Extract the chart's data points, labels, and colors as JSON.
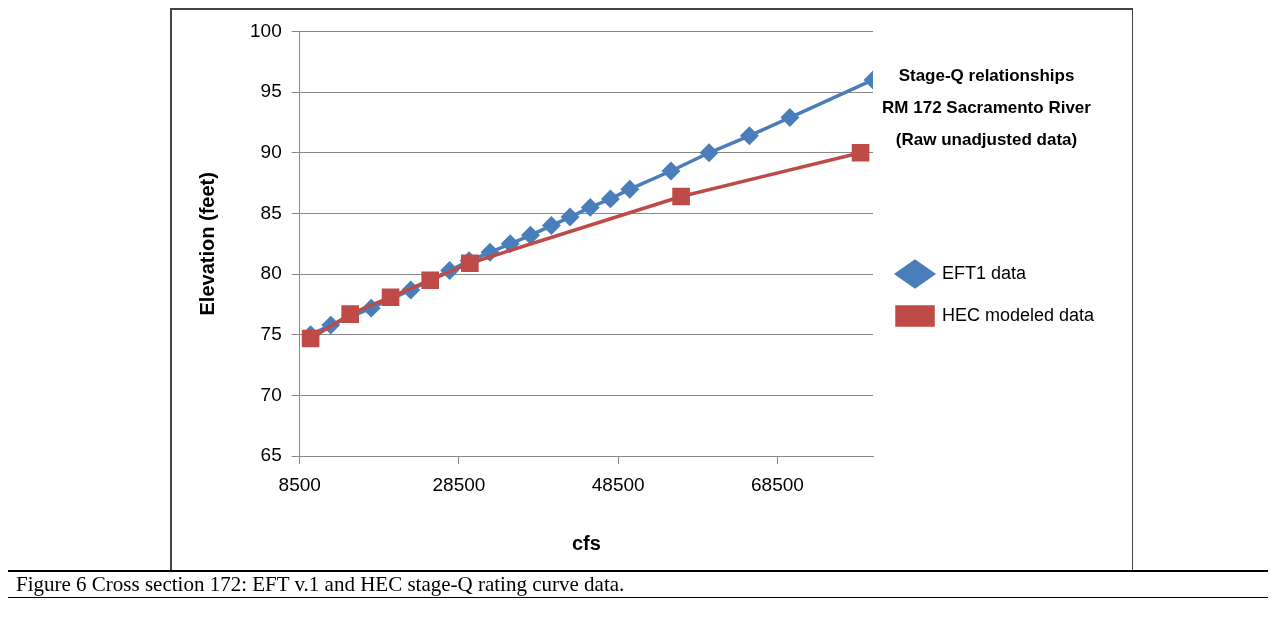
{
  "chart_data": {
    "type": "line",
    "title": "Stage-Q relationships\nRM 172 Sacramento River\n(Raw unadjusted data)",
    "xlabel": "cfs",
    "ylabel": "Elevation (feet)",
    "xlim": [
      8500,
      80500
    ],
    "xticks": [
      8500,
      28500,
      48500,
      68500
    ],
    "ylim": [
      65,
      100
    ],
    "yticks": [
      65,
      70,
      75,
      80,
      85,
      90,
      95,
      100
    ],
    "grid": "y",
    "legend": "right",
    "series": [
      {
        "name": "EFT1 data",
        "color": "#4a7ebb",
        "marker": "diamond",
        "x": [
          9870,
          12400,
          17480,
          22450,
          27330,
          29770,
          32400,
          34940,
          37480,
          40110,
          42450,
          44990,
          47520,
          49960,
          55130,
          59910,
          64980,
          70060,
          80500
        ],
        "values": [
          75,
          75.8,
          77.2,
          78.7,
          80.3,
          81.1,
          81.8,
          82.5,
          83.2,
          84,
          84.7,
          85.5,
          86.2,
          87,
          88.5,
          90,
          91.4,
          92.9,
          96
        ]
      },
      {
        "name": "HEC modeled data",
        "color": "#be4b48",
        "marker": "square",
        "x": [
          9870,
          14840,
          19910,
          24890,
          29870,
          56400,
          78940
        ],
        "values": [
          74.7,
          76.7,
          78.1,
          79.5,
          80.9,
          86.4,
          90
        ]
      }
    ],
    "annotations": [
      "Figure 6 Cross section 172: EFT v.1 and HEC stage-Q rating curve data."
    ]
  }
}
